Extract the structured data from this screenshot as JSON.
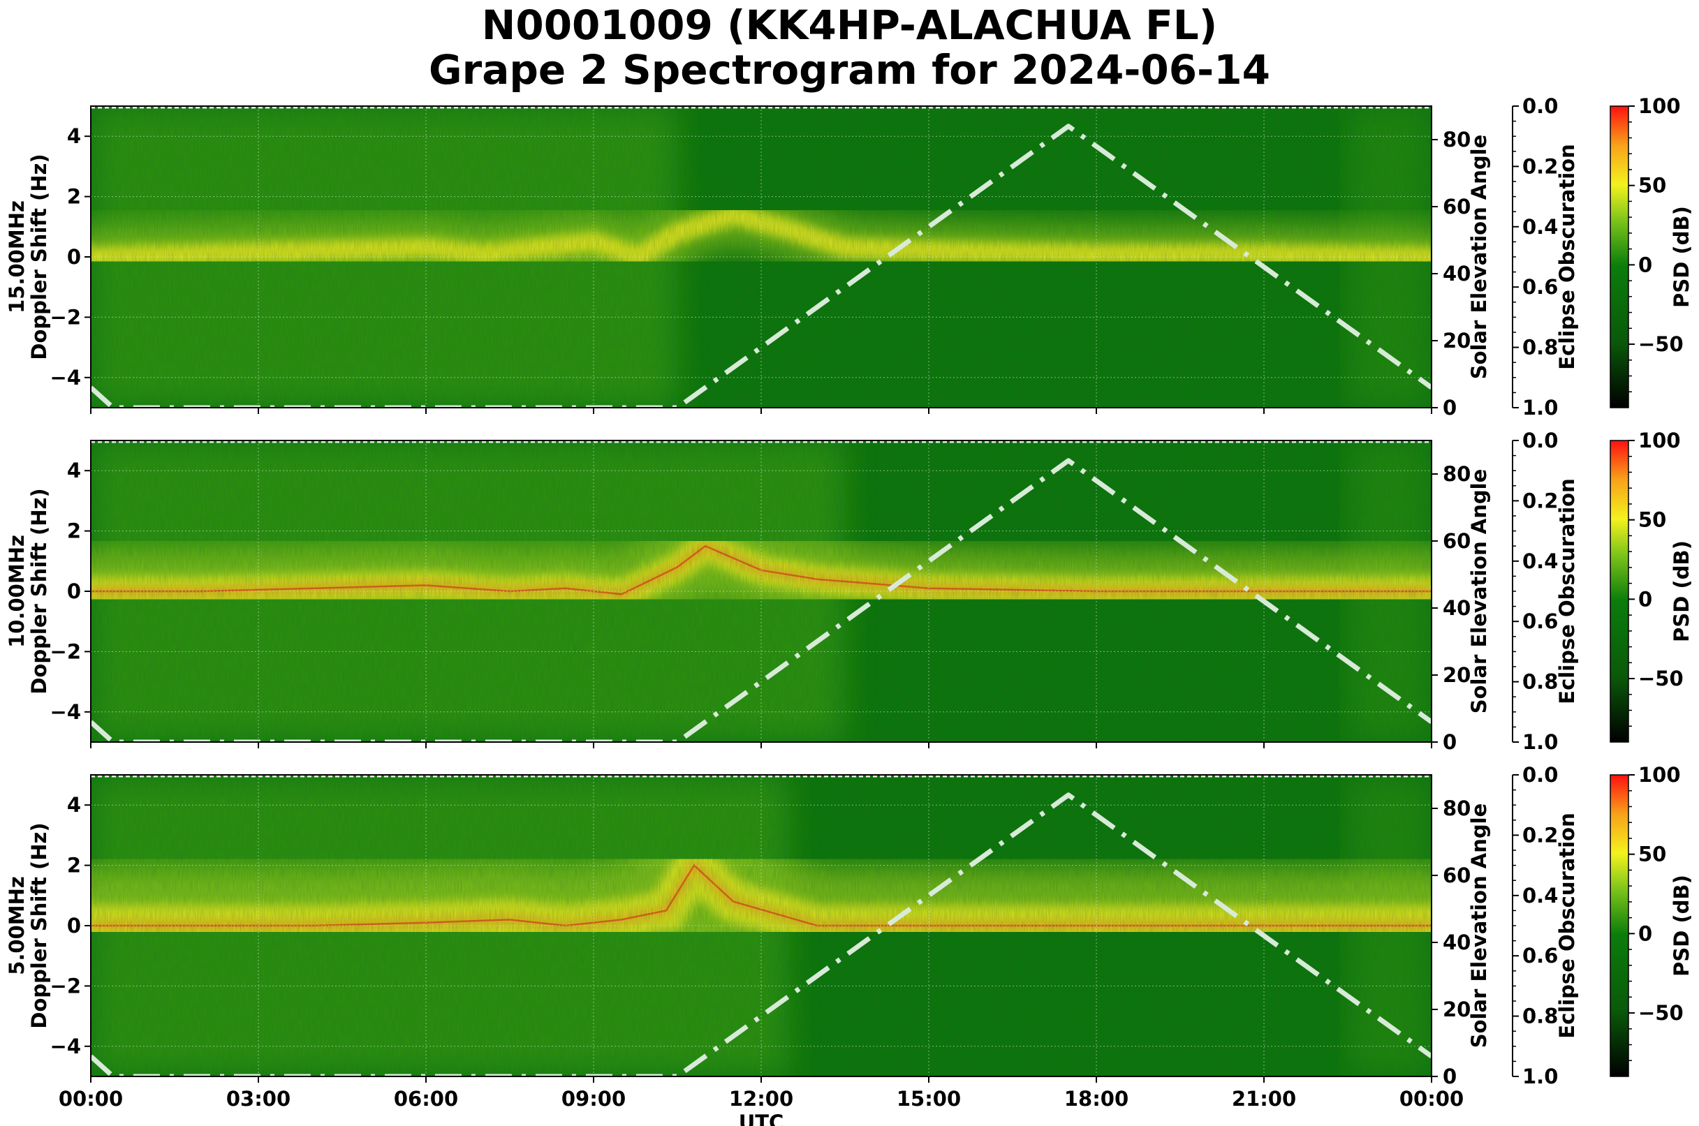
{
  "title_line1": "N0001009 (KK4HP-ALACHUA FL)",
  "title_line2": "Grape 2 Spectrogram for 2024-06-14",
  "xlabel": "UTC",
  "x_tick_labels": [
    "00:00",
    "03:00",
    "06:00",
    "09:00",
    "12:00",
    "15:00",
    "18:00",
    "21:00",
    "00:00"
  ],
  "colors": {
    "deep_green": "#087808",
    "mid_green": "#2e9a10",
    "yellow_green": "#9fd41a",
    "yellow": "#f4f21e",
    "orange": "#f7a21a",
    "red": "#ee2010",
    "elevation_line": "#d8ead8"
  },
  "chart_data": [
    {
      "type": "heatmap",
      "frequency_label": "15.00MHz",
      "ylabel": "15.00MHz\nDoppler Shift (Hz)",
      "ylim": [
        -5,
        5
      ],
      "y_ticks": [
        4,
        2,
        0,
        -2,
        -4
      ],
      "y_tick_labels": [
        "4",
        "2",
        "0",
        "−2",
        "−4"
      ],
      "xlim_hours": [
        0,
        24
      ],
      "right_axis": {
        "label": "Solar Elevation Angle",
        "ylim": [
          0,
          90
        ],
        "ticks": [
          0,
          20,
          40,
          60,
          80
        ]
      },
      "eclipse_axis": {
        "label": "Eclipse Obscuration",
        "ylim": [
          1.0,
          0.0
        ],
        "tick_labels": [
          "0.0",
          "0.2",
          "0.4",
          "0.6",
          "0.8",
          "1.0"
        ]
      },
      "colorbar": {
        "label": "PSD (dB)",
        "range": [
          -90,
          100
        ],
        "tick_labels": [
          "100",
          "50",
          "0",
          "−50"
        ]
      },
      "solar_elevation_series": {
        "x_hours": [
          0,
          0.4,
          10.5,
          17.5,
          24
        ],
        "y_degrees": [
          6,
          0,
          0,
          84,
          6
        ]
      },
      "doppler_trace": {
        "x_hours": [
          0,
          2,
          4,
          6,
          7,
          8,
          9,
          9.8,
          10.5,
          11.5,
          12.5,
          13.5,
          15,
          18,
          21,
          24
        ],
        "y_hz": [
          0.0,
          0.1,
          0.2,
          0.3,
          0.1,
          0.3,
          0.5,
          0.0,
          0.8,
          1.4,
          0.9,
          0.3,
          0.2,
          0.1,
          0.1,
          0.0
        ]
      }
    },
    {
      "type": "heatmap",
      "frequency_label": "10.00MHz",
      "ylabel": "10.00MHz\nDoppler Shift (Hz)",
      "ylim": [
        -5,
        5
      ],
      "y_ticks": [
        4,
        2,
        0,
        -2,
        -4
      ],
      "y_tick_labels": [
        "4",
        "2",
        "0",
        "−2",
        "−4"
      ],
      "xlim_hours": [
        0,
        24
      ],
      "right_axis": {
        "label": "Solar Elevation Angle",
        "ylim": [
          0,
          90
        ],
        "ticks": [
          0,
          20,
          40,
          60,
          80
        ]
      },
      "eclipse_axis": {
        "label": "Eclipse Obscuration",
        "ylim": [
          1.0,
          0.0
        ],
        "tick_labels": [
          "0.0",
          "0.2",
          "0.4",
          "0.6",
          "0.8",
          "1.0"
        ]
      },
      "colorbar": {
        "label": "PSD (dB)",
        "range": [
          -90,
          100
        ],
        "tick_labels": [
          "100",
          "50",
          "0",
          "−50"
        ]
      },
      "solar_elevation_series": {
        "x_hours": [
          0,
          0.4,
          10.5,
          17.5,
          24
        ],
        "y_degrees": [
          6,
          0,
          0,
          84,
          6
        ]
      },
      "doppler_trace": {
        "x_hours": [
          0,
          2,
          4,
          6,
          7.5,
          8.5,
          9.5,
          10.5,
          11,
          12,
          13,
          15,
          18,
          21,
          24
        ],
        "y_hz": [
          0.0,
          0.0,
          0.1,
          0.2,
          0.0,
          0.1,
          -0.1,
          0.8,
          1.5,
          0.7,
          0.4,
          0.1,
          0.0,
          0.0,
          0.0
        ]
      }
    },
    {
      "type": "heatmap",
      "frequency_label": "5.00MHz",
      "ylabel": "5.00MHz\nDoppler Shift (Hz)",
      "ylim": [
        -5,
        5
      ],
      "y_ticks": [
        4,
        2,
        0,
        -2,
        -4
      ],
      "y_tick_labels": [
        "4",
        "2",
        "0",
        "−2",
        "−4"
      ],
      "xlim_hours": [
        0,
        24
      ],
      "right_axis": {
        "label": "Solar Elevation Angle",
        "ylim": [
          0,
          90
        ],
        "ticks": [
          0,
          20,
          40,
          60,
          80
        ]
      },
      "eclipse_axis": {
        "label": "Eclipse Obscuration",
        "ylim": [
          1.0,
          0.0
        ],
        "tick_labels": [
          "0.0",
          "0.2",
          "0.4",
          "0.6",
          "0.8",
          "1.0"
        ]
      },
      "colorbar": {
        "label": "PSD (dB)",
        "range": [
          -90,
          100
        ],
        "tick_labels": [
          "100",
          "50",
          "0",
          "−50"
        ]
      },
      "solar_elevation_series": {
        "x_hours": [
          0,
          0.4,
          10.5,
          17.5,
          24
        ],
        "y_degrees": [
          6,
          0,
          0,
          84,
          6
        ]
      },
      "doppler_trace": {
        "x_hours": [
          0,
          2,
          4,
          6,
          7.5,
          8.5,
          9.5,
          10.3,
          10.8,
          11.5,
          13,
          16,
          20,
          24
        ],
        "y_hz": [
          0.0,
          0.0,
          0.0,
          0.1,
          0.2,
          0.0,
          0.2,
          0.5,
          2.0,
          0.8,
          0.0,
          0.0,
          0.0,
          0.0
        ]
      }
    }
  ]
}
